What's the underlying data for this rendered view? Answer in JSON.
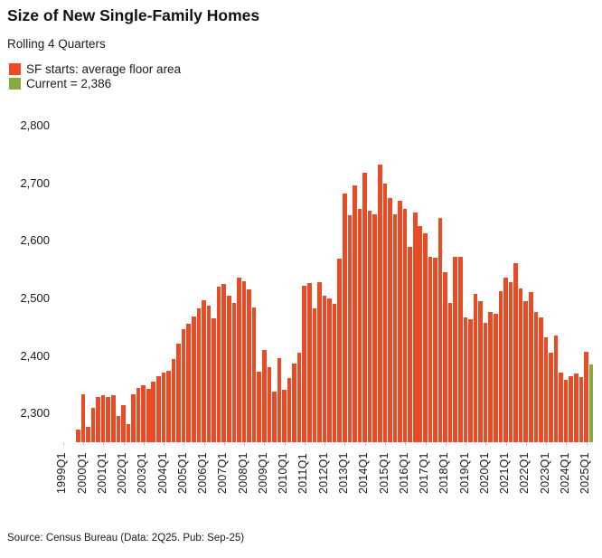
{
  "header": {
    "title": "Size of New Single-Family Homes",
    "subtitle": "Rolling 4 Quarters"
  },
  "legend": [
    {
      "label": "SF starts: average floor area",
      "color": "#ea4a24"
    },
    {
      "label": "Current = 2,386",
      "color": "#84aa40"
    }
  ],
  "source": "Source: Census Bureau (Data: 2Q25. Pub: Sep-25)",
  "chart_data": {
    "type": "bar",
    "title": "Size of New Single-Family Homes",
    "subtitle": "Rolling 4 Quarters",
    "xlabel": "",
    "ylabel": "",
    "grid": false,
    "legend_position": "top-left",
    "ylim": [
      2250,
      2830
    ],
    "y_ticks": [
      2300,
      2400,
      2500,
      2600,
      2700,
      2800
    ],
    "y_tick_labels": [
      "2,300",
      "2,400",
      "2,500",
      "2,600",
      "2,700",
      "2,800"
    ],
    "x_tick_labels": [
      "1999Q1",
      "2000Q1",
      "2001Q1",
      "2002Q1",
      "2003Q1",
      "2004Q1",
      "2005Q1",
      "2006Q1",
      "2007Q1",
      "2008Q1",
      "2009Q1",
      "2010Q1",
      "2011Q1",
      "2012Q1",
      "2013Q1",
      "2014Q1",
      "2015Q1",
      "2016Q1",
      "2017Q1",
      "2018Q1",
      "2019Q1",
      "2020Q1",
      "2021Q1",
      "2022Q1",
      "2023Q1",
      "2024Q1",
      "2025Q1"
    ],
    "series_name": "SF starts: average floor area",
    "bar_color": "#ea4a24",
    "current_color": "#84aa40",
    "current_value": 2386,
    "current_quarter": "2025Q2",
    "quarters": [
      "1999Q4",
      "2000Q1",
      "2000Q2",
      "2000Q3",
      "2000Q4",
      "2001Q1",
      "2001Q2",
      "2001Q3",
      "2001Q4",
      "2002Q1",
      "2002Q2",
      "2002Q3",
      "2002Q4",
      "2003Q1",
      "2003Q2",
      "2003Q3",
      "2003Q4",
      "2004Q1",
      "2004Q2",
      "2004Q3",
      "2004Q4",
      "2005Q1",
      "2005Q2",
      "2005Q3",
      "2005Q4",
      "2006Q1",
      "2006Q2",
      "2006Q3",
      "2006Q4",
      "2007Q1",
      "2007Q2",
      "2007Q3",
      "2007Q4",
      "2008Q1",
      "2008Q2",
      "2008Q3",
      "2008Q4",
      "2009Q1",
      "2009Q2",
      "2009Q3",
      "2009Q4",
      "2010Q1",
      "2010Q2",
      "2010Q3",
      "2010Q4",
      "2011Q1",
      "2011Q2",
      "2011Q3",
      "2011Q4",
      "2012Q1",
      "2012Q2",
      "2012Q3",
      "2012Q4",
      "2013Q1",
      "2013Q2",
      "2013Q3",
      "2013Q4",
      "2014Q1",
      "2014Q2",
      "2014Q3",
      "2014Q4",
      "2015Q1",
      "2015Q2",
      "2015Q3",
      "2015Q4",
      "2016Q1",
      "2016Q2",
      "2016Q3",
      "2016Q4",
      "2017Q1",
      "2017Q2",
      "2017Q3",
      "2017Q4",
      "2018Q1",
      "2018Q2",
      "2018Q3",
      "2018Q4",
      "2019Q1",
      "2019Q2",
      "2019Q3",
      "2019Q4",
      "2020Q1",
      "2020Q2",
      "2020Q3",
      "2020Q4",
      "2021Q1",
      "2021Q2",
      "2021Q3",
      "2021Q4",
      "2022Q1",
      "2022Q2",
      "2022Q3",
      "2022Q4",
      "2023Q1",
      "2023Q2",
      "2023Q3",
      "2023Q4",
      "2024Q1",
      "2024Q2",
      "2024Q3",
      "2024Q4",
      "2025Q1",
      "2025Q2"
    ],
    "values": [
      2272,
      2334,
      2277,
      2310,
      2328,
      2331,
      2328,
      2332,
      2295,
      2315,
      2282,
      2333,
      2345,
      2349,
      2343,
      2356,
      2365,
      2371,
      2374,
      2395,
      2421,
      2446,
      2456,
      2469,
      2482,
      2497,
      2487,
      2466,
      2520,
      2525,
      2505,
      2492,
      2536,
      2530,
      2515,
      2485,
      2372,
      2410,
      2381,
      2338,
      2396,
      2341,
      2361,
      2387,
      2405,
      2522,
      2527,
      2482,
      2528,
      2505,
      2500,
      2490,
      2569,
      2683,
      2644,
      2697,
      2655,
      2718,
      2652,
      2647,
      2733,
      2700,
      2675,
      2647,
      2670,
      2655,
      2590,
      2649,
      2626,
      2613,
      2573,
      2570,
      2640,
      2546,
      2492,
      2573,
      2573,
      2467,
      2464,
      2508,
      2495,
      2457,
      2477,
      2473,
      2513,
      2536,
      2528,
      2562,
      2518,
      2496,
      2511,
      2477,
      2467,
      2432,
      2405,
      2435,
      2371,
      2358,
      2365,
      2370,
      2363,
      2408,
      2386
    ]
  }
}
